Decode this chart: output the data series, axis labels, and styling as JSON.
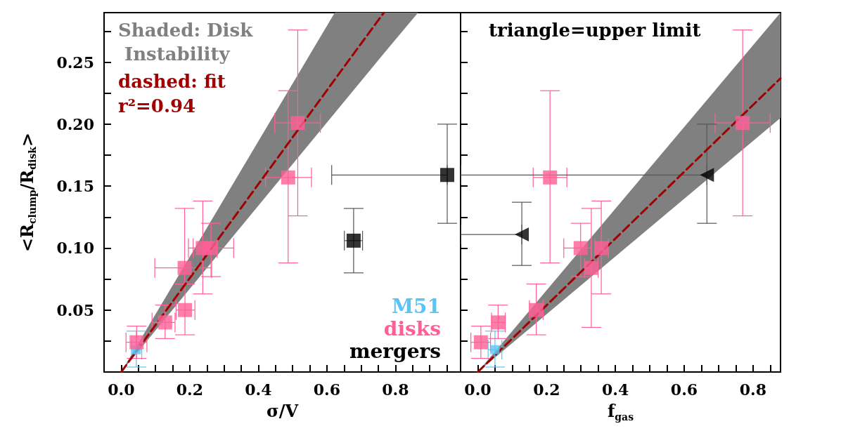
{
  "chart_data": [
    {
      "type": "scatter",
      "xlabel": "σ/V",
      "ylabel": "<R$_{clump}$/R$_{disk}$>",
      "xlim": [
        -0.05,
        0.99
      ],
      "ylim": [
        0,
        0.29
      ],
      "xticks": [
        {
          "value": 0,
          "label": "0.0"
        },
        {
          "value": 0.05,
          "label": null
        },
        {
          "value": 0.1,
          "label": null
        },
        {
          "value": 0.15,
          "label": null
        },
        0.2,
        {
          "value": 0.25,
          "label": null
        },
        {
          "value": 0.3,
          "label": null
        },
        {
          "value": 0.35,
          "label": null
        },
        0.4,
        {
          "value": 0.45,
          "label": null
        },
        {
          "value": 0.5,
          "label": null
        },
        {
          "value": 0.55,
          "label": null
        },
        0.6,
        {
          "value": 0.65,
          "label": null
        },
        {
          "value": 0.7,
          "label": null
        },
        {
          "value": 0.75,
          "label": null
        },
        0.8,
        {
          "value": 0.85,
          "label": null
        },
        {
          "value": 0.9,
          "label": null
        },
        {
          "value": 0.95,
          "label": null
        }
      ],
      "yticks": [
        {
          "value": 0.025,
          "label": null
        },
        0.05,
        {
          "value": 0.075,
          "label": null
        },
        {
          "value": 0.1,
          "label": "0.10"
        },
        {
          "value": 0.125,
          "label": null
        },
        0.15,
        {
          "value": 0.175,
          "label": null
        },
        {
          "value": 0.2,
          "label": "0.20"
        },
        {
          "value": 0.225,
          "label": null
        },
        0.25,
        {
          "value": 0.275,
          "label": null
        }
      ],
      "annotations": [
        "Shaded: Disk Instability",
        "dashed: fit",
        "r²=0.94"
      ],
      "legend": "bottom right",
      "series": [
        {
          "type": "line",
          "color": "#a00000",
          "line_style": "dashed",
          "x": [
            0,
            0.623,
            0.766,
            0.866
          ],
          "values": [
            0,
            0.236,
            0.29,
            null
          ],
          "lower": [
            0,
            0.209,
            0.257,
            0.29
          ],
          "upper": [
            0,
            0.29,
            0.29,
            0.29
          ]
        },
        {
          "name": "M51",
          "color": "#5bc4f5",
          "marker": "square",
          "x": [
            0.044
          ],
          "values": [
            0.018
          ],
          "errors": [
            [
              0.004,
              0.033
            ]
          ],
          "xerrors": [
            [
              0.03,
              0.06
            ]
          ]
        },
        {
          "name": "disks",
          "color": "#ff5f96",
          "marker": "square",
          "x": [
            0.045,
            0.128,
            0.186,
            0.185,
            0.238,
            0.262,
            0.487,
            0.515
          ],
          "values": [
            0.024,
            0.04,
            0.05,
            0.084,
            0.1,
            0.1,
            0.157,
            0.201
          ],
          "errors": [
            [
              0.011,
              0.037
            ],
            [
              0.027,
              0.054
            ],
            [
              0.03,
              0.071
            ],
            [
              0.071,
              0.132
            ],
            [
              0.063,
              0.138
            ],
            [
              0.077,
              0.12
            ],
            [
              0.088,
              0.227
            ],
            [
              0.126,
              0.276
            ]
          ],
          "xerrors": [
            [
              0.014,
              0.075
            ],
            [
              0.09,
              0.157
            ],
            [
              0.16,
              0.215
            ],
            [
              0.098,
              0.264
            ],
            [
              0.196,
              0.28
            ],
            [
              0.21,
              0.328
            ],
            [
              0.421,
              0.555
            ],
            [
              0.448,
              0.581
            ]
          ]
        },
        {
          "name": "mergers",
          "color": "#000000",
          "marker": "square",
          "x": [
            0.678,
            0.951
          ],
          "values": [
            0.106,
            0.159
          ],
          "errors": [
            [
              0.08,
              0.132
            ],
            [
              0.12,
              0.2
            ]
          ],
          "xerrors": [
            [
              0.651,
              0.704
            ],
            [
              0.614,
              0.951
            ]
          ]
        }
      ]
    },
    {
      "type": "scatter",
      "xlabel": "f$_{gas}$",
      "xlim": [
        -0.05,
        0.88
      ],
      "ylim": [
        0,
        0.29
      ],
      "tick_labels": "x",
      "xticks": [
        {
          "value": 0,
          "label": "0.0"
        },
        {
          "value": 0.05,
          "label": null
        },
        {
          "value": 0.1,
          "label": null
        },
        {
          "value": 0.15,
          "label": null
        },
        0.2,
        {
          "value": 0.25,
          "label": null
        },
        {
          "value": 0.3,
          "label": null
        },
        {
          "value": 0.35,
          "label": null
        },
        0.4,
        {
          "value": 0.45,
          "label": null
        },
        {
          "value": 0.5,
          "label": null
        },
        {
          "value": 0.55,
          "label": null
        },
        0.6,
        {
          "value": 0.65,
          "label": null
        },
        {
          "value": 0.7,
          "label": null
        },
        {
          "value": 0.75,
          "label": null
        },
        0.8,
        {
          "value": 0.85,
          "label": null
        }
      ],
      "yticks": [
        {
          "value": 0.025,
          "label": null
        },
        {
          "value": 0.05,
          "label": null
        },
        {
          "value": 0.075,
          "label": null
        },
        {
          "value": 0.1,
          "label": null
        },
        {
          "value": 0.125,
          "label": null
        },
        {
          "value": 0.15,
          "label": null
        },
        {
          "value": 0.175,
          "label": null
        },
        {
          "value": 0.2,
          "label": null
        },
        {
          "value": 0.225,
          "label": null
        },
        {
          "value": 0.25,
          "label": null
        },
        {
          "value": 0.275,
          "label": null
        }
      ],
      "annotations": [
        "triangle=upper limit"
      ],
      "series": [
        {
          "type": "line",
          "color": "#a00000",
          "line_style": "dashed",
          "x": [
            0,
            0.88
          ],
          "values": [
            0,
            0.237
          ],
          "lower": [
            0,
            0.205
          ],
          "upper": [
            0,
            0.29
          ]
        },
        {
          "color": "#5bc4f5",
          "marker": "square",
          "x": [
            0.05
          ],
          "values": [
            0.018
          ],
          "errors": [
            [
              0.004,
              0.033
            ]
          ],
          "xerrors": [
            [
              0.03,
              0.07
            ]
          ]
        },
        {
          "color": "#ff5f96",
          "marker": "square",
          "x": [
            0.009,
            0.059,
            0.17,
            0.21,
            0.299,
            0.33,
            0.359,
            0.77
          ],
          "values": [
            0.024,
            0.04,
            0.05,
            0.157,
            0.1,
            0.084,
            0.1,
            0.201
          ],
          "errors": [
            [
              0.011,
              0.037
            ],
            [
              0.027,
              0.054
            ],
            [
              0.03,
              0.071
            ],
            [
              0.088,
              0.227
            ],
            [
              0.077,
              0.12
            ],
            [
              0.036,
              0.132
            ],
            [
              0.063,
              0.138
            ],
            [
              0.126,
              0.276
            ]
          ],
          "xerrors": [
            [
              -0.02,
              0.037
            ],
            [
              0.04,
              0.08
            ],
            [
              0.15,
              0.19
            ],
            [
              0.161,
              0.259
            ],
            [
              0.25,
              0.33
            ],
            [
              0.31,
              0.35
            ],
            [
              0.34,
              0.38
            ],
            [
              0.69,
              0.85
            ]
          ]
        },
        {
          "color": "#000000",
          "marker": "triangle",
          "x": [
            0.128,
            0.666
          ],
          "values": [
            0.111,
            0.159
          ],
          "errors": [
            [
              0.086,
              0.137
            ],
            [
              0.12,
              0.2
            ]
          ],
          "xerrors": [
            [
              -0.05,
              0.128
            ],
            [
              -0.05,
              0.666
            ]
          ]
        }
      ]
    }
  ]
}
